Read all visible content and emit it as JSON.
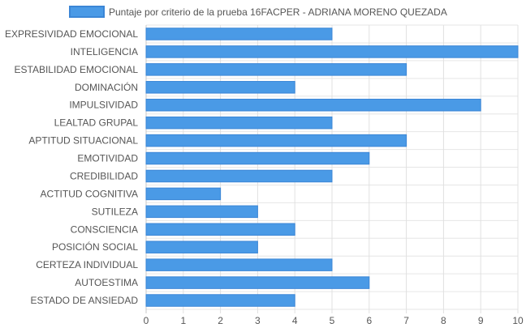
{
  "chart_data": {
    "type": "bar",
    "orientation": "horizontal",
    "categories": [
      "EXPRESIVIDAD EMOCIONAL",
      "INTELIGENCIA",
      "ESTABILIDAD EMOCIONAL",
      "DOMINACIÓN",
      "IMPULSIVIDAD",
      "LEALTAD GRUPAL",
      "APTITUD SITUACIONAL",
      "EMOTIVIDAD",
      "CREDIBILIDAD",
      "ACTITUD COGNITIVA",
      "SUTILEZA",
      "CONSCIENCIA",
      "POSICIÓN SOCIAL",
      "CERTEZA INDIVIDUAL",
      "AUTOESTIMA",
      "ESTADO DE ANSIEDAD"
    ],
    "series": [
      {
        "name": "Puntaje por criterio de la prueba 16FACPER - ADRIANA MORENO QUEZADA",
        "color": "#4a9ae6",
        "border_color": "#3b86d6",
        "values": [
          5,
          10,
          7,
          4,
          9,
          5,
          7,
          6,
          5,
          2,
          3,
          4,
          3,
          5,
          6,
          4
        ]
      }
    ],
    "xlim": [
      0,
      10
    ],
    "xticks": [
      "0",
      "1",
      "2",
      "3",
      "4",
      "5",
      "6",
      "7",
      "8",
      "9",
      "10"
    ],
    "grid": true,
    "legend_position": "top-center"
  }
}
